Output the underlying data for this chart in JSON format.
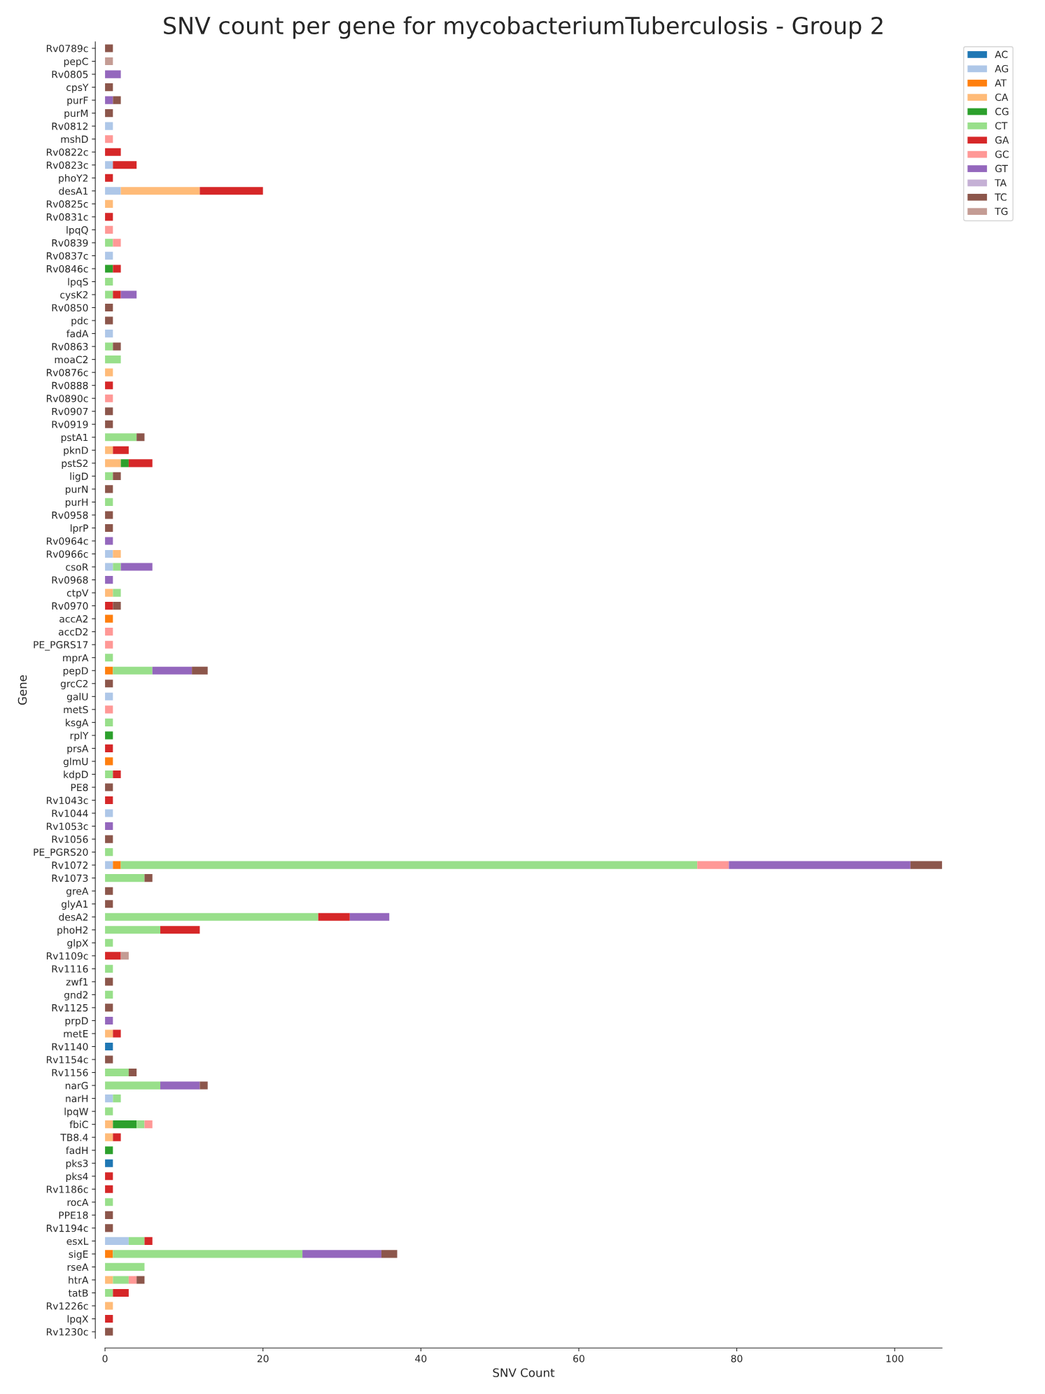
{
  "chart_data": {
    "type": "bar",
    "orientation": "horizontal",
    "stacked": true,
    "title": "SNV count per gene for mycobacteriumTuberculosis - Group 2",
    "xlabel": "SNV Count",
    "ylabel": "Gene",
    "xlim": [
      0,
      106
    ],
    "xticks": [
      0,
      20,
      40,
      60,
      80,
      100
    ],
    "legend": "top right",
    "categories": [
      "Rv0789c",
      "pepC",
      "Rv0805",
      "cpsY",
      "purF",
      "purM",
      "Rv0812",
      "mshD",
      "Rv0822c",
      "Rv0823c",
      "phoY2",
      "desA1",
      "Rv0825c",
      "Rv0831c",
      "lpqQ",
      "Rv0839",
      "Rv0837c",
      "Rv0846c",
      "lpqS",
      "cysK2",
      "Rv0850",
      "pdc",
      "fadA",
      "Rv0863",
      "moaC2",
      "Rv0876c",
      "Rv0888",
      "Rv0890c",
      "Rv0907",
      "Rv0919",
      "pstA1",
      "pknD",
      "pstS2",
      "ligD",
      "purN",
      "purH",
      "Rv0958",
      "lprP",
      "Rv0964c",
      "Rv0966c",
      "csoR",
      "Rv0968",
      "ctpV",
      "Rv0970",
      "accA2",
      "accD2",
      "PE_PGRS17",
      "mprA",
      "pepD",
      "grcC2",
      "galU",
      "metS",
      "ksgA",
      "rplY",
      "prsA",
      "glmU",
      "kdpD",
      "PE8",
      "Rv1043c",
      "Rv1044",
      "Rv1053c",
      "Rv1056",
      "PE_PGRS20",
      "Rv1072",
      "Rv1073",
      "greA",
      "glyA1",
      "desA2",
      "phoH2",
      "glpX",
      "Rv1109c",
      "Rv1116",
      "zwf1",
      "gnd2",
      "Rv1125",
      "prpD",
      "metE",
      "Rv1140",
      "Rv1154c",
      "Rv1156",
      "narG",
      "narH",
      "lpqW",
      "fbiC",
      "TB8.4",
      "fadH",
      "pks3",
      "pks4",
      "Rv1186c",
      "rocA",
      "PPE18",
      "Rv1194c",
      "esxL",
      "sigE",
      "rseA",
      "htrA",
      "tatB",
      "Rv1226c",
      "lpqX",
      "Rv1230c"
    ],
    "series": [
      {
        "name": "AC",
        "color": "#1f77b4",
        "values": [
          null,
          null,
          null,
          null,
          null,
          null,
          null,
          null,
          null,
          null,
          null,
          null,
          null,
          null,
          null,
          null,
          null,
          null,
          null,
          null,
          null,
          null,
          null,
          null,
          null,
          null,
          null,
          null,
          null,
          null,
          null,
          null,
          null,
          null,
          null,
          null,
          null,
          null,
          null,
          null,
          null,
          null,
          null,
          null,
          null,
          null,
          null,
          null,
          null,
          null,
          null,
          null,
          null,
          null,
          null,
          null,
          null,
          null,
          null,
          null,
          null,
          null,
          null,
          null,
          null,
          null,
          null,
          null,
          null,
          null,
          null,
          null,
          null,
          null,
          null,
          null,
          null,
          1,
          null,
          null,
          null,
          null,
          null,
          null,
          null,
          null,
          1,
          null,
          null,
          null,
          null,
          null,
          null,
          null,
          null,
          null,
          null,
          null,
          null,
          null
        ]
      },
      {
        "name": "AG",
        "color": "#aec7e8",
        "values": [
          null,
          null,
          null,
          null,
          null,
          null,
          1,
          null,
          null,
          1,
          null,
          2,
          null,
          null,
          null,
          null,
          1,
          null,
          null,
          null,
          null,
          null,
          1,
          null,
          null,
          null,
          null,
          null,
          null,
          null,
          null,
          null,
          null,
          null,
          null,
          null,
          null,
          null,
          null,
          1,
          1,
          null,
          null,
          null,
          null,
          null,
          null,
          null,
          null,
          null,
          1,
          null,
          null,
          null,
          null,
          null,
          null,
          null,
          null,
          1,
          null,
          null,
          null,
          1,
          null,
          null,
          null,
          null,
          null,
          null,
          null,
          null,
          null,
          null,
          null,
          null,
          null,
          null,
          null,
          null,
          null,
          1,
          null,
          null,
          null,
          null,
          null,
          null,
          null,
          null,
          null,
          null,
          3,
          null,
          null,
          null,
          null,
          null,
          null,
          null
        ]
      },
      {
        "name": "AT",
        "color": "#ff7f0e",
        "values": [
          null,
          null,
          null,
          null,
          null,
          null,
          null,
          null,
          null,
          null,
          null,
          null,
          null,
          null,
          null,
          null,
          null,
          null,
          null,
          null,
          null,
          null,
          null,
          null,
          null,
          null,
          null,
          null,
          null,
          null,
          null,
          null,
          null,
          null,
          null,
          null,
          null,
          null,
          null,
          null,
          null,
          null,
          null,
          null,
          1,
          null,
          null,
          null,
          1,
          null,
          null,
          null,
          null,
          null,
          null,
          1,
          null,
          null,
          null,
          null,
          null,
          null,
          null,
          1,
          null,
          null,
          null,
          null,
          null,
          null,
          null,
          null,
          null,
          null,
          null,
          null,
          null,
          null,
          null,
          null,
          null,
          null,
          null,
          null,
          null,
          null,
          null,
          null,
          null,
          null,
          null,
          null,
          null,
          1,
          null,
          null,
          null,
          null,
          null,
          null
        ]
      },
      {
        "name": "CA",
        "color": "#ffbb78",
        "values": [
          null,
          null,
          null,
          null,
          null,
          null,
          null,
          null,
          null,
          null,
          null,
          10,
          1,
          null,
          null,
          null,
          null,
          null,
          null,
          null,
          null,
          null,
          null,
          null,
          null,
          1,
          null,
          null,
          null,
          null,
          null,
          1,
          2,
          null,
          null,
          null,
          null,
          null,
          null,
          1,
          null,
          null,
          1,
          null,
          null,
          null,
          null,
          null,
          null,
          null,
          null,
          null,
          null,
          null,
          null,
          null,
          null,
          null,
          null,
          null,
          null,
          null,
          null,
          null,
          null,
          null,
          null,
          null,
          null,
          null,
          null,
          null,
          null,
          null,
          null,
          null,
          1,
          null,
          null,
          null,
          null,
          null,
          null,
          1,
          1,
          null,
          null,
          null,
          null,
          null,
          null,
          null,
          null,
          null,
          null,
          1,
          null,
          1,
          null,
          null
        ]
      },
      {
        "name": "CG",
        "color": "#2ca02c",
        "values": [
          null,
          null,
          null,
          null,
          null,
          null,
          null,
          null,
          null,
          null,
          null,
          null,
          null,
          null,
          null,
          null,
          null,
          1,
          null,
          null,
          null,
          null,
          null,
          null,
          null,
          null,
          null,
          null,
          null,
          null,
          null,
          null,
          1,
          null,
          null,
          null,
          null,
          null,
          null,
          null,
          null,
          null,
          null,
          null,
          null,
          null,
          null,
          null,
          null,
          null,
          null,
          null,
          null,
          1,
          null,
          null,
          null,
          null,
          null,
          null,
          null,
          null,
          null,
          null,
          null,
          null,
          null,
          null,
          null,
          null,
          null,
          null,
          null,
          null,
          null,
          null,
          null,
          null,
          null,
          null,
          null,
          null,
          null,
          3,
          null,
          1,
          null,
          null,
          null,
          null,
          null,
          null,
          null,
          null,
          null,
          null,
          null,
          null,
          null,
          null
        ]
      },
      {
        "name": "CT",
        "color": "#98df8a",
        "values": [
          null,
          null,
          null,
          null,
          null,
          null,
          null,
          null,
          null,
          null,
          null,
          null,
          null,
          null,
          null,
          1,
          null,
          null,
          1,
          1,
          null,
          null,
          null,
          1,
          2,
          null,
          null,
          null,
          null,
          null,
          4,
          null,
          null,
          1,
          null,
          1,
          null,
          null,
          null,
          null,
          1,
          null,
          1,
          null,
          null,
          null,
          null,
          1,
          5,
          null,
          null,
          null,
          1,
          null,
          null,
          null,
          1,
          null,
          null,
          null,
          null,
          null,
          1,
          73,
          5,
          null,
          null,
          27,
          7,
          1,
          null,
          1,
          null,
          1,
          null,
          null,
          null,
          null,
          null,
          3,
          7,
          1,
          1,
          1,
          null,
          null,
          null,
          null,
          null,
          1,
          null,
          null,
          2,
          24,
          5,
          2,
          1,
          null,
          null,
          null
        ]
      },
      {
        "name": "GA",
        "color": "#d62728",
        "values": [
          null,
          null,
          null,
          null,
          null,
          null,
          null,
          null,
          2,
          3,
          1,
          8,
          null,
          1,
          null,
          null,
          null,
          1,
          null,
          1,
          null,
          null,
          null,
          null,
          null,
          null,
          1,
          null,
          null,
          null,
          null,
          2,
          3,
          null,
          null,
          null,
          null,
          null,
          null,
          null,
          null,
          null,
          null,
          1,
          null,
          null,
          null,
          null,
          null,
          null,
          null,
          null,
          null,
          null,
          1,
          null,
          1,
          null,
          1,
          null,
          null,
          null,
          null,
          null,
          null,
          null,
          null,
          4,
          5,
          null,
          2,
          null,
          null,
          null,
          null,
          null,
          1,
          null,
          null,
          null,
          null,
          null,
          null,
          null,
          1,
          null,
          null,
          1,
          1,
          null,
          null,
          null,
          1,
          null,
          null,
          null,
          2,
          null,
          1,
          null
        ]
      },
      {
        "name": "GC",
        "color": "#ff9896",
        "values": [
          null,
          null,
          null,
          null,
          null,
          null,
          null,
          1,
          null,
          null,
          null,
          null,
          null,
          null,
          1,
          1,
          null,
          null,
          null,
          null,
          null,
          null,
          null,
          null,
          null,
          null,
          null,
          1,
          null,
          null,
          null,
          null,
          null,
          null,
          null,
          null,
          null,
          null,
          null,
          null,
          null,
          null,
          null,
          null,
          null,
          1,
          1,
          null,
          null,
          null,
          null,
          1,
          null,
          null,
          null,
          null,
          null,
          null,
          null,
          null,
          null,
          null,
          null,
          4,
          null,
          null,
          null,
          null,
          null,
          null,
          null,
          null,
          null,
          null,
          null,
          null,
          null,
          null,
          null,
          null,
          null,
          null,
          null,
          1,
          null,
          null,
          null,
          null,
          null,
          null,
          null,
          null,
          null,
          null,
          null,
          1,
          null,
          null,
          null,
          null
        ]
      },
      {
        "name": "GT",
        "color": "#9467bd",
        "values": [
          null,
          null,
          2,
          null,
          1,
          null,
          null,
          null,
          null,
          null,
          null,
          null,
          null,
          null,
          null,
          null,
          null,
          null,
          null,
          2,
          null,
          null,
          null,
          null,
          null,
          null,
          null,
          null,
          null,
          null,
          null,
          null,
          null,
          null,
          null,
          null,
          null,
          null,
          1,
          null,
          4,
          1,
          null,
          null,
          null,
          null,
          null,
          null,
          5,
          null,
          null,
          null,
          null,
          null,
          null,
          null,
          null,
          null,
          null,
          null,
          1,
          null,
          null,
          23,
          null,
          null,
          null,
          5,
          null,
          null,
          null,
          null,
          null,
          null,
          null,
          1,
          null,
          null,
          null,
          null,
          5,
          null,
          null,
          null,
          null,
          null,
          null,
          null,
          null,
          null,
          null,
          null,
          null,
          10,
          null,
          null,
          null,
          null,
          null,
          null
        ]
      },
      {
        "name": "TA",
        "color": "#c5b0d5",
        "values": [
          null,
          null,
          null,
          null,
          null,
          null,
          null,
          null,
          null,
          null,
          null,
          null,
          null,
          null,
          null,
          null,
          null,
          null,
          null,
          null,
          null,
          null,
          null,
          null,
          null,
          null,
          null,
          null,
          null,
          null,
          null,
          null,
          null,
          null,
          null,
          null,
          null,
          null,
          null,
          null,
          null,
          null,
          null,
          null,
          null,
          null,
          null,
          null,
          null,
          null,
          null,
          null,
          null,
          null,
          null,
          null,
          null,
          null,
          null,
          null,
          null,
          null,
          null,
          null,
          null,
          null,
          null,
          null,
          null,
          null,
          null,
          null,
          null,
          null,
          null,
          null,
          null,
          null,
          null,
          null,
          null,
          null,
          null,
          null,
          null,
          null,
          null,
          null,
          null,
          null,
          null,
          null,
          null,
          null,
          null,
          null,
          null,
          null,
          null,
          null
        ]
      },
      {
        "name": "TC",
        "color": "#8c564b",
        "values": [
          1,
          null,
          null,
          1,
          1,
          1,
          null,
          null,
          null,
          null,
          null,
          null,
          null,
          null,
          null,
          null,
          null,
          null,
          null,
          null,
          1,
          1,
          null,
          1,
          null,
          null,
          null,
          null,
          1,
          1,
          1,
          null,
          null,
          1,
          1,
          null,
          1,
          1,
          null,
          null,
          null,
          null,
          null,
          1,
          null,
          null,
          null,
          null,
          2,
          1,
          null,
          null,
          null,
          null,
          null,
          null,
          null,
          1,
          null,
          null,
          null,
          1,
          null,
          4,
          1,
          1,
          1,
          null,
          null,
          null,
          null,
          null,
          1,
          null,
          1,
          null,
          null,
          null,
          1,
          1,
          1,
          null,
          null,
          null,
          null,
          null,
          null,
          null,
          null,
          null,
          1,
          1,
          null,
          2,
          null,
          1,
          null,
          null,
          null,
          1
        ]
      },
      {
        "name": "TG",
        "color": "#c49c94",
        "values": [
          null,
          1,
          null,
          null,
          null,
          null,
          null,
          null,
          null,
          null,
          null,
          null,
          null,
          null,
          null,
          null,
          null,
          null,
          null,
          null,
          null,
          null,
          null,
          null,
          null,
          null,
          null,
          null,
          null,
          null,
          null,
          null,
          null,
          null,
          null,
          null,
          null,
          null,
          null,
          null,
          null,
          null,
          null,
          null,
          null,
          null,
          null,
          null,
          null,
          null,
          null,
          null,
          null,
          null,
          null,
          null,
          null,
          null,
          null,
          null,
          null,
          null,
          null,
          null,
          null,
          null,
          null,
          null,
          null,
          null,
          1,
          null,
          null,
          null,
          null,
          null,
          null,
          null,
          null,
          null,
          null,
          null,
          null,
          null,
          null,
          null,
          null,
          null,
          null,
          null,
          null,
          null,
          null,
          null,
          null,
          null,
          null,
          null,
          null,
          null
        ]
      }
    ]
  }
}
